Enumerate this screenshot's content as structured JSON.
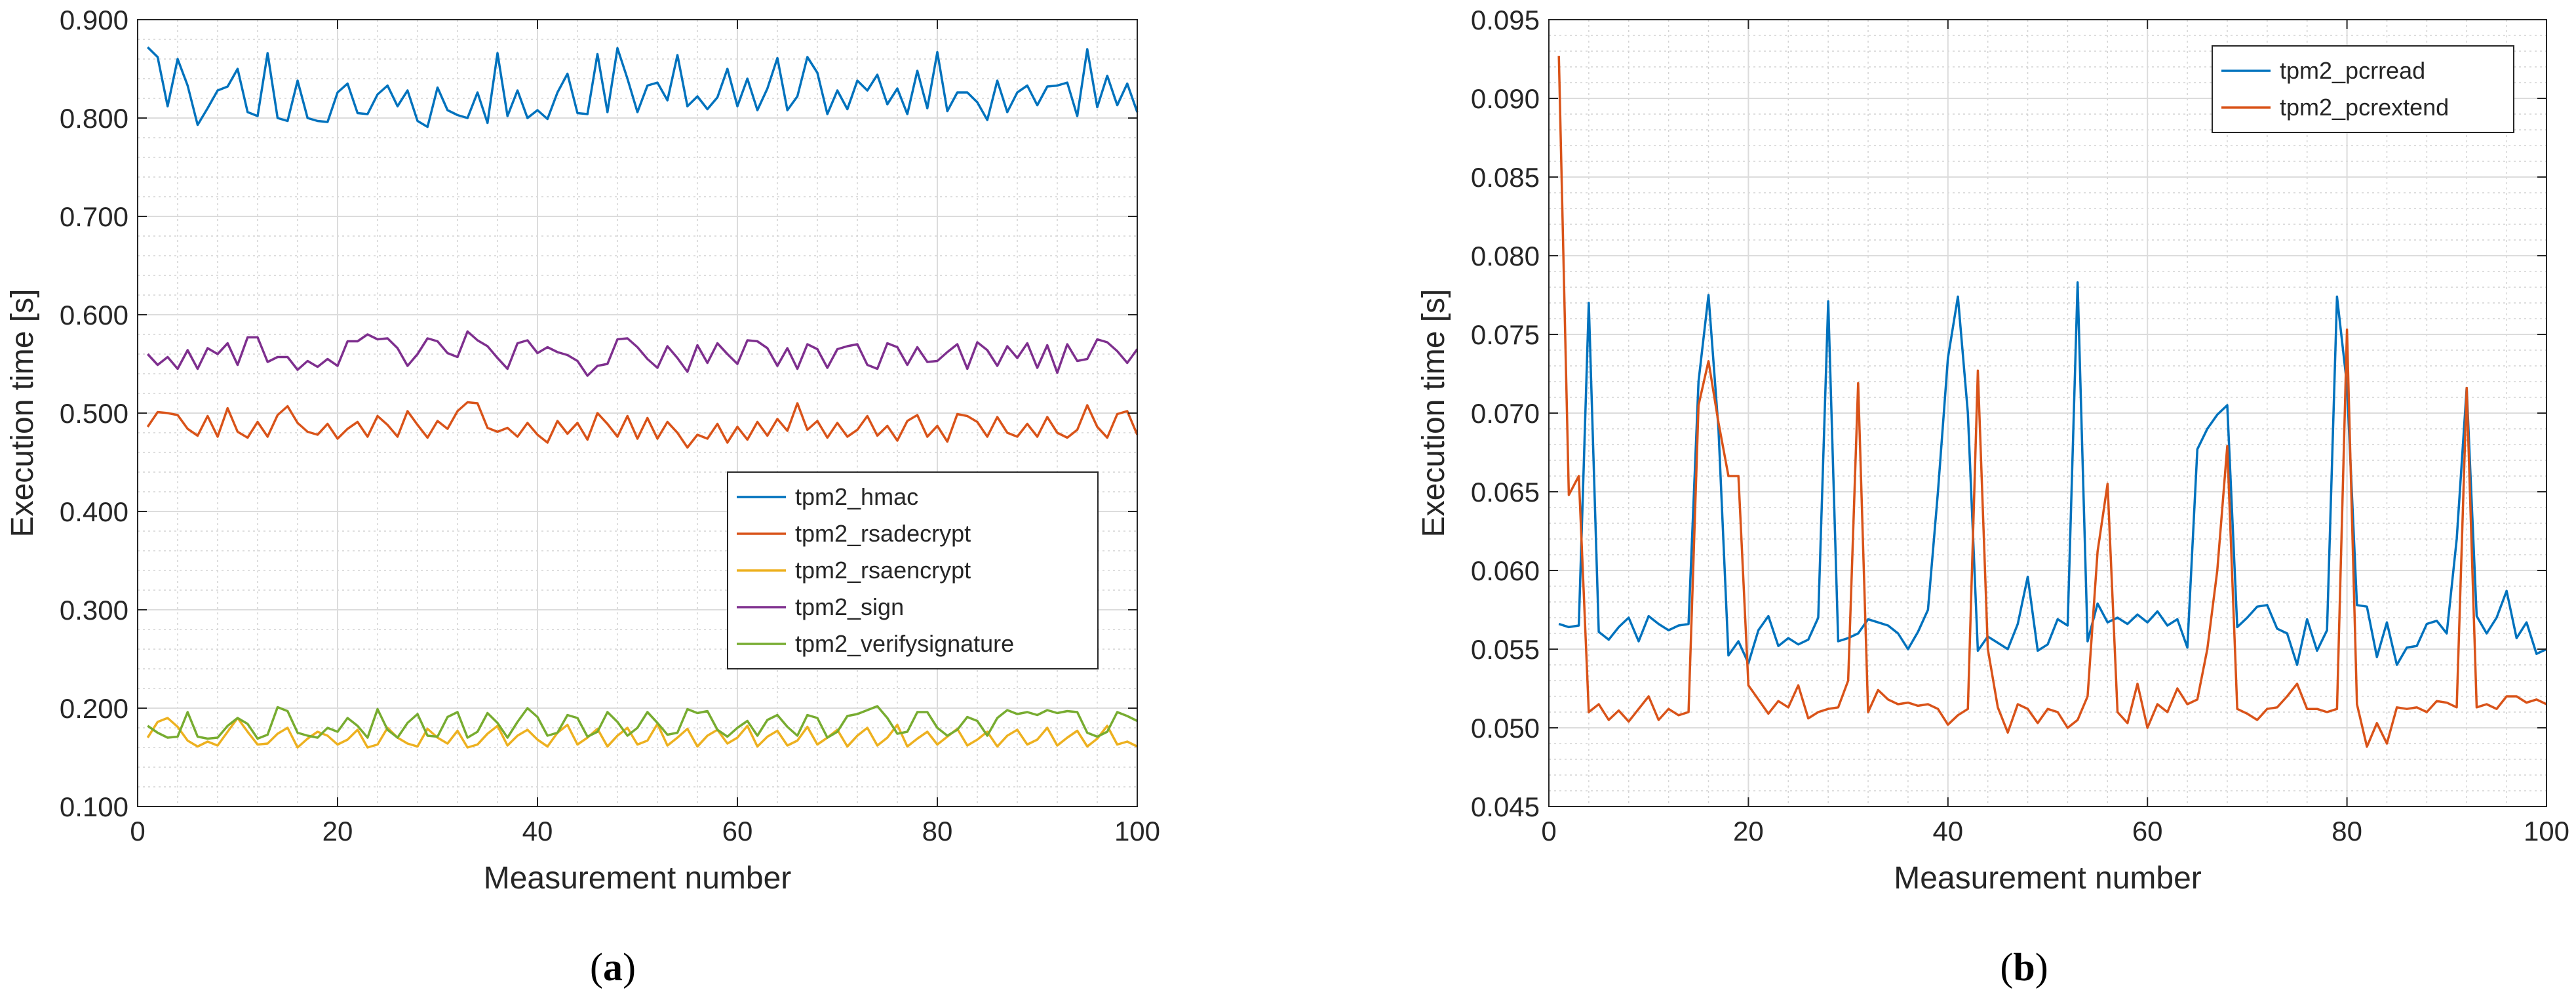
{
  "chart_data": [
    {
      "type": "line",
      "panel_label": "a",
      "xlabel": "Measurement number",
      "ylabel": "Execution time [s]",
      "xlim": [
        0,
        100
      ],
      "ylim": [
        0.1,
        0.9
      ],
      "xticks": [
        0,
        20,
        40,
        60,
        80,
        100
      ],
      "xtick_labels": [
        "0",
        "20",
        "40",
        "60",
        "80",
        "100"
      ],
      "yticks": [
        0.1,
        0.2,
        0.3,
        0.4,
        0.5,
        0.6,
        0.7,
        0.8,
        0.9
      ],
      "ytick_labels": [
        "0.100",
        "0.200",
        "0.300",
        "0.400",
        "0.500",
        "0.600",
        "0.700",
        "0.800",
        "0.900"
      ],
      "grid": true,
      "minor_grid": true,
      "legend_position": "center-right",
      "x_start": 1,
      "series": [
        {
          "name": "tpm2_hmac",
          "color": "#0072BD",
          "values": [
            0.872,
            0.862,
            0.812,
            0.86,
            0.833,
            0.793,
            0.81,
            0.828,
            0.832,
            0.85,
            0.806,
            0.802,
            0.866,
            0.8,
            0.797,
            0.838,
            0.8,
            0.797,
            0.796,
            0.826,
            0.835,
            0.805,
            0.804,
            0.824,
            0.833,
            0.812,
            0.828,
            0.797,
            0.791,
            0.831,
            0.808,
            0.803,
            0.8,
            0.826,
            0.795,
            0.866,
            0.802,
            0.828,
            0.8,
            0.808,
            0.799,
            0.826,
            0.845,
            0.805,
            0.804,
            0.865,
            0.806,
            0.871,
            0.84,
            0.806,
            0.833,
            0.836,
            0.818,
            0.864,
            0.812,
            0.822,
            0.809,
            0.821,
            0.85,
            0.812,
            0.84,
            0.808,
            0.83,
            0.861,
            0.808,
            0.822,
            0.862,
            0.846,
            0.804,
            0.828,
            0.809,
            0.838,
            0.828,
            0.844,
            0.814,
            0.83,
            0.804,
            0.848,
            0.81,
            0.867,
            0.807,
            0.826,
            0.826,
            0.816,
            0.798,
            0.838,
            0.806,
            0.826,
            0.833,
            0.813,
            0.832,
            0.833,
            0.836,
            0.802,
            0.87,
            0.811,
            0.843,
            0.813,
            0.835,
            0.806
          ]
        },
        {
          "name": "tpm2_rsadecrypt",
          "color": "#D95319",
          "values": [
            0.486,
            0.501,
            0.5,
            0.498,
            0.484,
            0.477,
            0.497,
            0.476,
            0.505,
            0.481,
            0.475,
            0.491,
            0.476,
            0.498,
            0.507,
            0.49,
            0.481,
            0.478,
            0.489,
            0.474,
            0.484,
            0.491,
            0.476,
            0.497,
            0.488,
            0.476,
            0.502,
            0.488,
            0.475,
            0.492,
            0.484,
            0.502,
            0.511,
            0.51,
            0.485,
            0.481,
            0.485,
            0.476,
            0.49,
            0.478,
            0.47,
            0.492,
            0.479,
            0.49,
            0.473,
            0.5,
            0.489,
            0.476,
            0.497,
            0.474,
            0.495,
            0.474,
            0.491,
            0.48,
            0.465,
            0.478,
            0.474,
            0.489,
            0.47,
            0.486,
            0.473,
            0.491,
            0.477,
            0.494,
            0.482,
            0.51,
            0.483,
            0.492,
            0.475,
            0.49,
            0.476,
            0.483,
            0.497,
            0.477,
            0.487,
            0.472,
            0.492,
            0.498,
            0.476,
            0.487,
            0.471,
            0.499,
            0.497,
            0.491,
            0.476,
            0.496,
            0.48,
            0.476,
            0.489,
            0.476,
            0.496,
            0.48,
            0.475,
            0.483,
            0.508,
            0.486,
            0.475,
            0.499,
            0.502,
            0.478
          ]
        },
        {
          "name": "tpm2_rsaencrypt",
          "color": "#EDB120",
          "values": [
            0.17,
            0.186,
            0.19,
            0.181,
            0.167,
            0.161,
            0.166,
            0.162,
            0.176,
            0.19,
            0.176,
            0.163,
            0.164,
            0.174,
            0.18,
            0.16,
            0.169,
            0.176,
            0.172,
            0.163,
            0.168,
            0.178,
            0.16,
            0.163,
            0.18,
            0.17,
            0.164,
            0.161,
            0.179,
            0.17,
            0.164,
            0.177,
            0.16,
            0.163,
            0.174,
            0.182,
            0.162,
            0.172,
            0.178,
            0.168,
            0.161,
            0.175,
            0.183,
            0.163,
            0.17,
            0.179,
            0.161,
            0.172,
            0.18,
            0.163,
            0.167,
            0.184,
            0.162,
            0.17,
            0.179,
            0.161,
            0.172,
            0.178,
            0.164,
            0.17,
            0.182,
            0.161,
            0.171,
            0.177,
            0.162,
            0.167,
            0.181,
            0.163,
            0.17,
            0.178,
            0.161,
            0.172,
            0.18,
            0.162,
            0.17,
            0.183,
            0.161,
            0.169,
            0.176,
            0.163,
            0.171,
            0.179,
            0.162,
            0.168,
            0.176,
            0.161,
            0.172,
            0.178,
            0.163,
            0.168,
            0.18,
            0.162,
            0.17,
            0.177,
            0.161,
            0.169,
            0.182,
            0.163,
            0.166,
            0.161
          ]
        },
        {
          "name": "tpm2_sign",
          "color": "#7E2F8E",
          "values": [
            0.56,
            0.549,
            0.557,
            0.545,
            0.564,
            0.545,
            0.566,
            0.56,
            0.571,
            0.549,
            0.577,
            0.577,
            0.552,
            0.557,
            0.557,
            0.544,
            0.553,
            0.547,
            0.555,
            0.548,
            0.573,
            0.573,
            0.58,
            0.575,
            0.576,
            0.566,
            0.548,
            0.56,
            0.576,
            0.573,
            0.561,
            0.557,
            0.583,
            0.574,
            0.568,
            0.556,
            0.545,
            0.571,
            0.574,
            0.561,
            0.567,
            0.562,
            0.559,
            0.553,
            0.538,
            0.548,
            0.55,
            0.575,
            0.576,
            0.567,
            0.555,
            0.546,
            0.568,
            0.556,
            0.542,
            0.569,
            0.551,
            0.571,
            0.56,
            0.55,
            0.574,
            0.573,
            0.566,
            0.548,
            0.566,
            0.545,
            0.57,
            0.565,
            0.546,
            0.565,
            0.568,
            0.57,
            0.549,
            0.545,
            0.571,
            0.567,
            0.549,
            0.567,
            0.552,
            0.553,
            0.562,
            0.57,
            0.545,
            0.572,
            0.564,
            0.548,
            0.568,
            0.556,
            0.571,
            0.546,
            0.569,
            0.541,
            0.57,
            0.553,
            0.555,
            0.575,
            0.572,
            0.563,
            0.551,
            0.565
          ]
        },
        {
          "name": "tpm2_verifysignature",
          "color": "#77AC30",
          "values": [
            0.182,
            0.175,
            0.17,
            0.171,
            0.196,
            0.171,
            0.169,
            0.17,
            0.182,
            0.19,
            0.184,
            0.169,
            0.173,
            0.201,
            0.197,
            0.175,
            0.172,
            0.17,
            0.18,
            0.176,
            0.19,
            0.182,
            0.17,
            0.199,
            0.178,
            0.17,
            0.185,
            0.194,
            0.172,
            0.171,
            0.191,
            0.196,
            0.17,
            0.176,
            0.195,
            0.185,
            0.17,
            0.186,
            0.2,
            0.191,
            0.172,
            0.175,
            0.193,
            0.19,
            0.171,
            0.176,
            0.196,
            0.186,
            0.172,
            0.18,
            0.196,
            0.185,
            0.173,
            0.175,
            0.199,
            0.195,
            0.197,
            0.178,
            0.171,
            0.18,
            0.187,
            0.172,
            0.188,
            0.193,
            0.181,
            0.172,
            0.193,
            0.19,
            0.17,
            0.176,
            0.192,
            0.194,
            0.198,
            0.202,
            0.19,
            0.174,
            0.176,
            0.196,
            0.196,
            0.18,
            0.172,
            0.178,
            0.191,
            0.187,
            0.172,
            0.19,
            0.198,
            0.194,
            0.196,
            0.193,
            0.198,
            0.195,
            0.197,
            0.196,
            0.175,
            0.171,
            0.176,
            0.196,
            0.192,
            0.187
          ]
        }
      ]
    },
    {
      "type": "line",
      "panel_label": "b",
      "xlabel": "Measurement number",
      "ylabel": "Execution time [s]",
      "xlim": [
        0,
        100
      ],
      "ylim": [
        0.045,
        0.095
      ],
      "xticks": [
        0,
        20,
        40,
        60,
        80,
        100
      ],
      "xtick_labels": [
        "0",
        "20",
        "40",
        "60",
        "80",
        "100"
      ],
      "yticks": [
        0.045,
        0.05,
        0.055,
        0.06,
        0.065,
        0.07,
        0.075,
        0.08,
        0.085,
        0.09,
        0.095
      ],
      "ytick_labels": [
        "0.045",
        "0.050",
        "0.055",
        "0.060",
        "0.065",
        "0.070",
        "0.075",
        "0.080",
        "0.085",
        "0.090",
        "0.095"
      ],
      "grid": true,
      "minor_grid": true,
      "legend_position": "top-right",
      "x_start": 1,
      "series": [
        {
          "name": "tpm2_pcrread",
          "color": "#0072BD",
          "values": [
            0.0566,
            0.0564,
            0.0565,
            0.077,
            0.0561,
            0.0556,
            0.0564,
            0.057,
            0.0555,
            0.0571,
            0.0566,
            0.0562,
            0.0565,
            0.0566,
            0.072,
            0.0775,
            0.069,
            0.0546,
            0.0555,
            0.0541,
            0.0562,
            0.0571,
            0.0552,
            0.0557,
            0.0553,
            0.0556,
            0.057,
            0.0771,
            0.0555,
            0.0557,
            0.056,
            0.0569,
            0.0567,
            0.0565,
            0.056,
            0.055,
            0.0561,
            0.0575,
            0.065,
            0.0735,
            0.0774,
            0.07,
            0.0549,
            0.0558,
            0.0554,
            0.055,
            0.0566,
            0.0596,
            0.0549,
            0.0553,
            0.0569,
            0.0565,
            0.0783,
            0.0555,
            0.0579,
            0.0567,
            0.057,
            0.0566,
            0.0572,
            0.0567,
            0.0574,
            0.0565,
            0.0569,
            0.0551,
            0.0677,
            0.069,
            0.0699,
            0.0705,
            0.0564,
            0.057,
            0.0577,
            0.0578,
            0.0563,
            0.056,
            0.054,
            0.0569,
            0.0549,
            0.0562,
            0.0774,
            0.0718,
            0.0578,
            0.0577,
            0.0545,
            0.0567,
            0.054,
            0.0551,
            0.0552,
            0.0566,
            0.0568,
            0.056,
            0.062,
            0.0716,
            0.0571,
            0.056,
            0.057,
            0.0587,
            0.0557,
            0.0567,
            0.0547,
            0.055
          ]
        },
        {
          "name": "tpm2_pcrextend",
          "color": "#D95319",
          "values": [
            0.0927,
            0.0648,
            0.066,
            0.051,
            0.0515,
            0.0505,
            0.0511,
            0.0504,
            0.0512,
            0.052,
            0.0505,
            0.0512,
            0.0508,
            0.051,
            0.0705,
            0.0733,
            0.0694,
            0.066,
            0.066,
            0.0527,
            0.0518,
            0.0509,
            0.0517,
            0.0513,
            0.0527,
            0.0506,
            0.051,
            0.0512,
            0.0513,
            0.053,
            0.0719,
            0.051,
            0.0524,
            0.0518,
            0.0515,
            0.0516,
            0.0514,
            0.0515,
            0.0512,
            0.0502,
            0.0508,
            0.0512,
            0.0727,
            0.055,
            0.0513,
            0.0497,
            0.0515,
            0.0512,
            0.0503,
            0.0512,
            0.051,
            0.05,
            0.0505,
            0.052,
            0.0612,
            0.0655,
            0.051,
            0.0503,
            0.0528,
            0.05,
            0.0515,
            0.051,
            0.0525,
            0.0515,
            0.0518,
            0.055,
            0.06,
            0.0679,
            0.0512,
            0.0509,
            0.0505,
            0.0512,
            0.0513,
            0.052,
            0.0528,
            0.0512,
            0.0512,
            0.051,
            0.0512,
            0.0753,
            0.0515,
            0.0488,
            0.0503,
            0.049,
            0.0513,
            0.0512,
            0.0513,
            0.051,
            0.0517,
            0.0516,
            0.0513,
            0.0716,
            0.0513,
            0.0515,
            0.0512,
            0.052,
            0.052,
            0.0516,
            0.0518,
            0.0515
          ]
        }
      ]
    }
  ]
}
